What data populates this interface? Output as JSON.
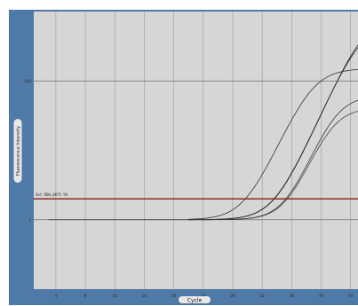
{
  "chart_data": {
    "type": "line",
    "xlabel": "Cycle",
    "ylabel": "Fluorescence Intensity",
    "y_scale": "log",
    "xlim": [
      1,
      45
    ],
    "ylim": [
      0.1,
      1000
    ],
    "x_ticks": [
      4,
      8,
      12,
      16,
      20,
      24,
      28,
      32,
      36,
      40,
      44
    ],
    "y_ticks": [
      {
        "value": 100,
        "label": "100"
      },
      {
        "value": 1,
        "label": "1"
      }
    ],
    "grid": true,
    "threshold": {
      "value": 2.0,
      "label": "Set ROW_0075 9A",
      "color": "#8b1a1a"
    },
    "series": [
      {
        "color": "#333333",
        "baseline": 1.0,
        "plateau": 150,
        "midpoint": 38.8,
        "steepness": 0.55
      },
      {
        "color": "#2d2d2d",
        "baseline": 1.0,
        "plateau": 700,
        "midpoint": 45.5,
        "steepness": 0.55
      },
      {
        "color": "#222222",
        "baseline": 1.0,
        "plateau": 900,
        "midpoint": 46.0,
        "steepness": 0.55
      },
      {
        "color": "#444444",
        "baseline": 1.0,
        "plateau": 40,
        "midpoint": 41.5,
        "steepness": 0.6
      },
      {
        "color": "#3a3a3a",
        "baseline": 1.0,
        "plateau": 60,
        "midpoint": 42.0,
        "steepness": 0.6
      }
    ],
    "colors": {
      "panel": "#4f79a6",
      "plot_bg": "#d6d6d6",
      "grid": "#9a9a9a",
      "axis_pill": "#e8e8e8"
    }
  }
}
